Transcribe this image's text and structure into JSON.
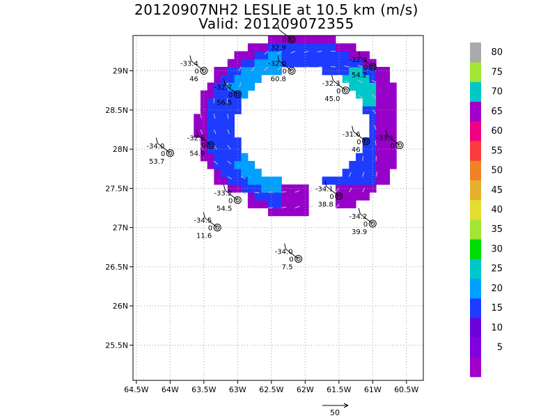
{
  "title_line1": "20120907NH2 LESLIE at 10.5 km (m/s)",
  "title_line2": "Valid: 201209072355",
  "chart_data": {
    "type": "heatmap",
    "x_tick_labels": [
      "64.5W",
      "64W",
      "63.5W",
      "63W",
      "62.5W",
      "62W",
      "61.5W",
      "61W",
      "60.5W"
    ],
    "y_tick_labels": [
      "25.5N",
      "26N",
      "26.5N",
      "27N",
      "27.5N",
      "28N",
      "28.5N",
      "29N"
    ],
    "xlim_deg_east": [
      -64.55,
      -60.25
    ],
    "ylim_deg_north": [
      25.05,
      29.45
    ],
    "grid": true,
    "colorbar": {
      "unit": "m/s",
      "levels": [
        "",
        "5",
        "10",
        "15",
        "20",
        "25",
        "30",
        "35",
        "40",
        "45",
        "50",
        "55",
        "60",
        "65",
        "70",
        "75",
        "80",
        ""
      ],
      "colors": [
        "#a000c8",
        "#8000e0",
        "#6e00dc",
        "#1e3cff",
        "#00a0ff",
        "#00c8c8",
        "#00dc00",
        "#a0e632",
        "#e6dc32",
        "#e6af2d",
        "#f08228",
        "#fa3c3c",
        "#f00082",
        "#a000c8",
        "#00c8c8",
        "#a0e632",
        "#aaaaaa"
      ]
    },
    "wind_cells": [
      {
        "lon": -63.4,
        "lat": 28.9,
        "speed_class": "violet"
      },
      {
        "lon": -62.9,
        "lat": 29.2,
        "speed_class": "purple"
      },
      {
        "lon": -62.3,
        "lat": 29.3,
        "speed_class": "blue"
      },
      {
        "lon": -61.6,
        "lat": 28.8,
        "speed_class": "cyan"
      },
      {
        "lon": -61.2,
        "lat": 28.3,
        "speed_class": "cyan"
      },
      {
        "lon": -61.0,
        "lat": 28.8,
        "speed_class": "violet"
      },
      {
        "lon": -60.8,
        "lat": 27.9,
        "speed_class": "violet"
      },
      {
        "lon": -63.2,
        "lat": 28.1,
        "speed_class": "blue"
      },
      {
        "lon": -63.3,
        "lat": 27.7,
        "speed_class": "lightblue"
      },
      {
        "lon": -62.4,
        "lat": 27.4,
        "speed_class": "blue"
      },
      {
        "lon": -61.7,
        "lat": 27.4,
        "speed_class": "violet"
      }
    ],
    "stations": [
      {
        "name": "st1",
        "lon": -63.5,
        "lat": 29.0,
        "temp": "-33.4",
        "wind": "0",
        "rh": "46"
      },
      {
        "name": "st2",
        "lon": -62.2,
        "lat": 29.4,
        "temp": "",
        "wind": "0",
        "rh": "32.9"
      },
      {
        "name": "st3",
        "lon": -62.2,
        "lat": 29.0,
        "temp": "-32.0",
        "wind": "0",
        "rh": "60.8"
      },
      {
        "name": "st4",
        "lon": -63.0,
        "lat": 28.7,
        "temp": "-32.7",
        "wind": "0",
        "rh": "56.5"
      },
      {
        "name": "st5",
        "lon": -61.4,
        "lat": 28.75,
        "temp": "-32.3",
        "wind": "0",
        "rh": "45.0"
      },
      {
        "name": "st6",
        "lon": -61.0,
        "lat": 29.05,
        "temp": "-32.3",
        "wind": "0",
        "rh": "54.2"
      },
      {
        "name": "st7",
        "lon": -63.4,
        "lat": 28.05,
        "temp": "-32.6",
        "wind": "0",
        "rh": "54.9"
      },
      {
        "name": "st8",
        "lon": -64.0,
        "lat": 27.95,
        "temp": "-34.0",
        "wind": "0",
        "rh": "53.7"
      },
      {
        "name": "st9",
        "lon": -61.1,
        "lat": 28.1,
        "temp": "-31.6",
        "wind": "0",
        "rh": "46"
      },
      {
        "name": "st10",
        "lon": -60.6,
        "lat": 28.05,
        "temp": "-33.1",
        "wind": "0",
        "rh": ""
      },
      {
        "name": "st11",
        "lon": -63.0,
        "lat": 27.35,
        "temp": "-33.2",
        "wind": "0",
        "rh": "54.5"
      },
      {
        "name": "st12",
        "lon": -61.5,
        "lat": 27.4,
        "temp": "-34.1",
        "wind": "0",
        "rh": "38.8"
      },
      {
        "name": "st13",
        "lon": -61.0,
        "lat": 27.05,
        "temp": "-34.2",
        "wind": "0",
        "rh": "39.9"
      },
      {
        "name": "st14",
        "lon": -63.3,
        "lat": 27.0,
        "temp": "-34.5",
        "wind": "0",
        "rh": "11.6"
      },
      {
        "name": "st15",
        "lon": -62.1,
        "lat": 26.6,
        "temp": "-34.0",
        "wind": "0",
        "rh": "7.5"
      }
    ],
    "reference_vector": {
      "label": "50",
      "unit": "m/s"
    }
  }
}
